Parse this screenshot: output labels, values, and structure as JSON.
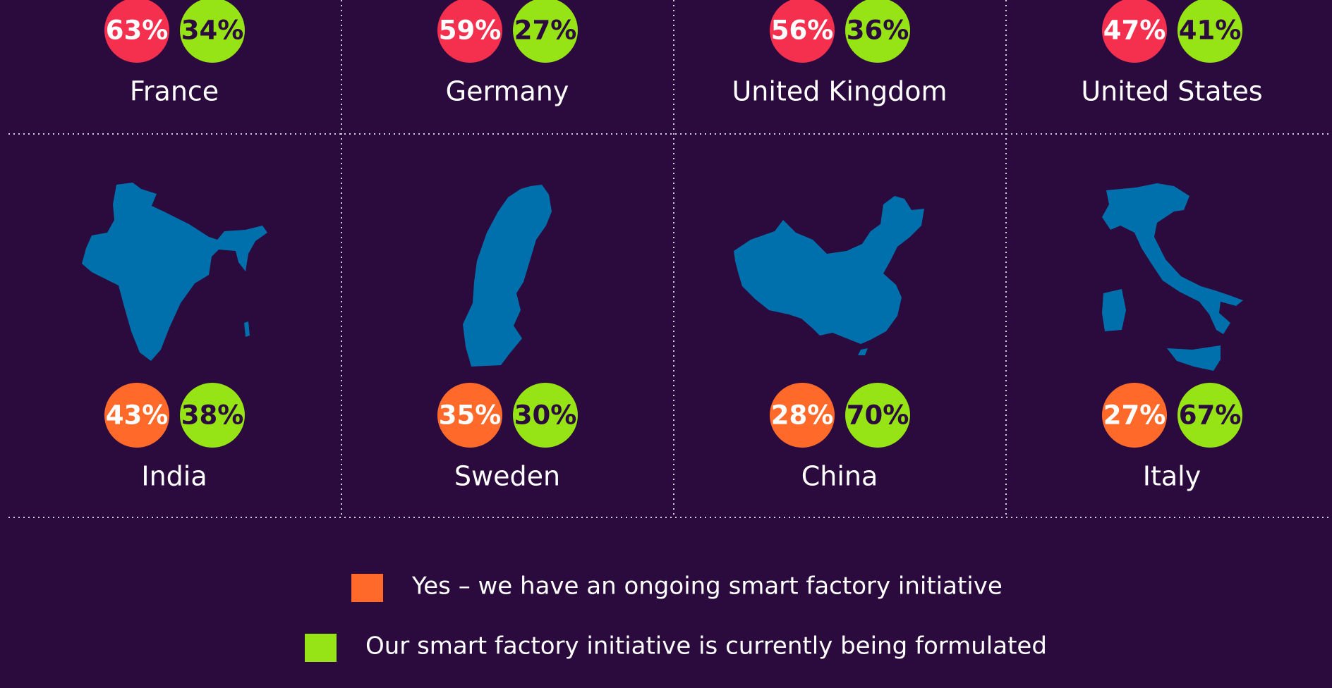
{
  "countries": [
    {
      "name": "France",
      "yes": "63%",
      "formulating": "34%",
      "yes_color": "#f5304f"
    },
    {
      "name": "Germany",
      "yes": "59%",
      "formulating": "27%",
      "yes_color": "#f5304f"
    },
    {
      "name": "United Kingdom",
      "yes": "56%",
      "formulating": "36%",
      "yes_color": "#f5304f"
    },
    {
      "name": "United States",
      "yes": "47%",
      "formulating": "41%",
      "yes_color": "#f5304f"
    },
    {
      "name": "India",
      "yes": "43%",
      "formulating": "38%",
      "yes_color": "#ff6a2b"
    },
    {
      "name": "Sweden",
      "yes": "35%",
      "formulating": "30%",
      "yes_color": "#ff6a2b"
    },
    {
      "name": "China",
      "yes": "28%",
      "formulating": "70%",
      "yes_color": "#ff6a2b"
    },
    {
      "name": "Italy",
      "yes": "27%",
      "formulating": "67%",
      "yes_color": "#ff6a2b"
    }
  ],
  "formulating_color": "#96e316",
  "legend": [
    {
      "label": "Yes – we have an ongoing smart factory initiative",
      "color": "#ff6a2b"
    },
    {
      "label": "Our smart factory initiative is currently being formulated",
      "color": "#96e316"
    }
  ]
}
